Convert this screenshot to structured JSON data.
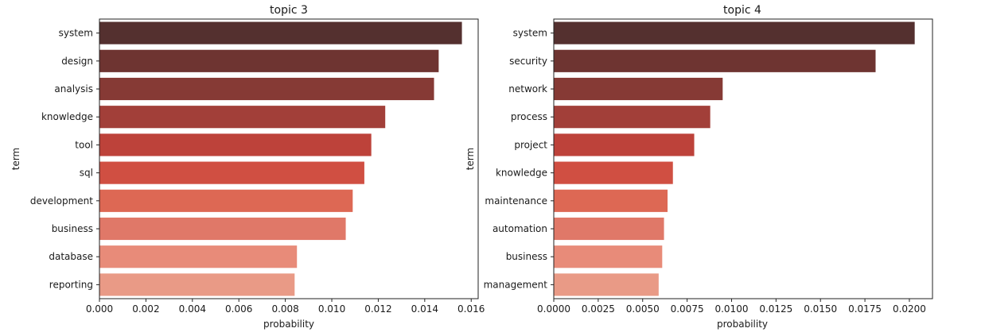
{
  "chart_data": [
    {
      "type": "bar",
      "orientation": "horizontal",
      "title": "topic 3",
      "xlabel": "probability",
      "ylabel": "term",
      "xlim": [
        0,
        0.0163
      ],
      "xticks": [
        0.0,
        0.002,
        0.004,
        0.006,
        0.008,
        0.01,
        0.012,
        0.014,
        0.016
      ],
      "xtick_labels": [
        "0.000",
        "0.002",
        "0.004",
        "0.006",
        "0.008",
        "0.010",
        "0.012",
        "0.014",
        "0.016"
      ],
      "categories": [
        "system",
        "design",
        "analysis",
        "knowledge",
        "tool",
        "sql",
        "development",
        "business",
        "database",
        "reporting"
      ],
      "values": [
        0.0156,
        0.0146,
        0.0144,
        0.0123,
        0.0117,
        0.0114,
        0.0109,
        0.0106,
        0.0085,
        0.0084
      ],
      "colors": [
        "#54302f",
        "#6e3431",
        "#863a35",
        "#a23f39",
        "#bd423a",
        "#d04f42",
        "#dd6854",
        "#e07868",
        "#e88b79",
        "#e99a86"
      ],
      "grid": false
    },
    {
      "type": "bar",
      "orientation": "horizontal",
      "title": "topic 4",
      "xlabel": "probability",
      "ylabel": "term",
      "xlim": [
        0,
        0.0213
      ],
      "xticks": [
        0.0,
        0.0025,
        0.005,
        0.0075,
        0.01,
        0.0125,
        0.015,
        0.0175,
        0.02
      ],
      "xtick_labels": [
        "0.0000",
        "0.0025",
        "0.0050",
        "0.0075",
        "0.0100",
        "0.0125",
        "0.0150",
        "0.0175",
        "0.0200"
      ],
      "categories": [
        "system",
        "security",
        "network",
        "process",
        "project",
        "knowledge",
        "maintenance",
        "automation",
        "business",
        "management"
      ],
      "values": [
        0.0203,
        0.0181,
        0.0095,
        0.0088,
        0.0079,
        0.0067,
        0.0064,
        0.0062,
        0.0061,
        0.0059
      ],
      "colors": [
        "#54302f",
        "#6e3431",
        "#863a35",
        "#a23f39",
        "#bd423a",
        "#d04f42",
        "#dd6854",
        "#e07868",
        "#e88b79",
        "#e99a86"
      ],
      "grid": false
    }
  ]
}
